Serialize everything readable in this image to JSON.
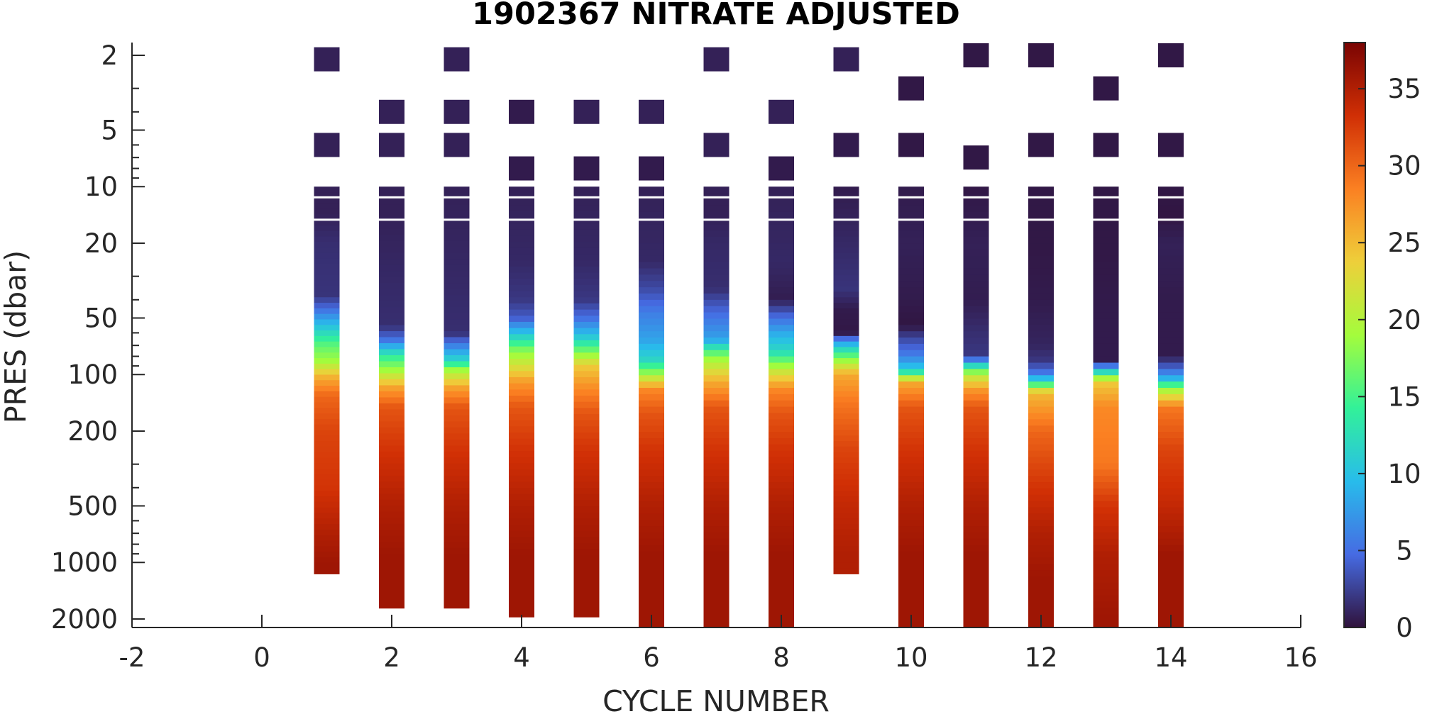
{
  "chart_data": {
    "type": "heatmap",
    "title": "1902367  NITRATE ADJUSTED",
    "xlabel": "CYCLE NUMBER",
    "ylabel": "PRES (dbar)",
    "xlim": [
      -2,
      16
    ],
    "x_ticks": [
      "-2",
      "0",
      "2",
      "4",
      "6",
      "8",
      "10",
      "12",
      "14",
      "16"
    ],
    "y_scale": "log",
    "y_reversed": true,
    "ylim": [
      1.7,
      2200
    ],
    "y_ticks": [
      "2",
      "5",
      "10",
      "20",
      "50",
      "100",
      "200",
      "500",
      "1000",
      "2000"
    ],
    "colorbar": {
      "colormap": "turbo",
      "range": [
        0,
        38
      ],
      "ticks": [
        "0",
        "5",
        "10",
        "15",
        "20",
        "25",
        "30",
        "35"
      ]
    },
    "profiles": [
      {
        "cycle": 1,
        "max_pres": 1150,
        "profile": [
          [
            2.1,
            0.8
          ],
          [
            6,
            0.8
          ],
          [
            10,
            0.8
          ],
          [
            14,
            0.8
          ],
          [
            20,
            1.5
          ],
          [
            38,
            1.8
          ],
          [
            45,
            5
          ],
          [
            55,
            10
          ],
          [
            70,
            16
          ],
          [
            85,
            19
          ],
          [
            105,
            26
          ],
          [
            130,
            30
          ],
          [
            200,
            32
          ],
          [
            400,
            33
          ],
          [
            700,
            35
          ],
          [
            1000,
            36
          ]
        ]
      },
      {
        "cycle": 2,
        "max_pres": 1750,
        "profile": [
          [
            4,
            0.8
          ],
          [
            6,
            0.8
          ],
          [
            10,
            0.8
          ],
          [
            14,
            0.8
          ],
          [
            30,
            1.2
          ],
          [
            55,
            1.5
          ],
          [
            65,
            5
          ],
          [
            80,
            14
          ],
          [
            95,
            19
          ],
          [
            120,
            27
          ],
          [
            150,
            31
          ],
          [
            250,
            33
          ],
          [
            500,
            35
          ],
          [
            900,
            36
          ],
          [
            1600,
            36
          ]
        ]
      },
      {
        "cycle": 3,
        "max_pres": 1750,
        "profile": [
          [
            2.1,
            0.8
          ],
          [
            4,
            0.8
          ],
          [
            6,
            0.8
          ],
          [
            10,
            0.8
          ],
          [
            30,
            1.2
          ],
          [
            60,
            1.5
          ],
          [
            70,
            6
          ],
          [
            85,
            12
          ],
          [
            95,
            19
          ],
          [
            120,
            27
          ],
          [
            150,
            31
          ],
          [
            250,
            33
          ],
          [
            500,
            35
          ],
          [
            900,
            36
          ],
          [
            1600,
            36
          ]
        ]
      },
      {
        "cycle": 4,
        "max_pres": 1950,
        "profile": [
          [
            4,
            0.5
          ],
          [
            8,
            0.5
          ],
          [
            10,
            0.8
          ],
          [
            25,
            1.2
          ],
          [
            40,
            2
          ],
          [
            50,
            4
          ],
          [
            62,
            11
          ],
          [
            75,
            18
          ],
          [
            90,
            22
          ],
          [
            110,
            27
          ],
          [
            150,
            31
          ],
          [
            250,
            33
          ],
          [
            500,
            35
          ],
          [
            900,
            36
          ],
          [
            1800,
            36
          ]
        ]
      },
      {
        "cycle": 5,
        "max_pres": 1950,
        "profile": [
          [
            4,
            0.8
          ],
          [
            8,
            0.5
          ],
          [
            10,
            0.8
          ],
          [
            25,
            1.2
          ],
          [
            40,
            2
          ],
          [
            50,
            5
          ],
          [
            62,
            10
          ],
          [
            75,
            17
          ],
          [
            90,
            24
          ],
          [
            120,
            28
          ],
          [
            160,
            31
          ],
          [
            250,
            33
          ],
          [
            500,
            35
          ],
          [
            900,
            36
          ],
          [
            1800,
            36
          ]
        ]
      },
      {
        "cycle": 6,
        "max_pres": 2200,
        "profile": [
          [
            4,
            0.8
          ],
          [
            8,
            0.5
          ],
          [
            10,
            0.8
          ],
          [
            25,
            1.2
          ],
          [
            35,
            3
          ],
          [
            48,
            6
          ],
          [
            65,
            8
          ],
          [
            85,
            12
          ],
          [
            100,
            19
          ],
          [
            120,
            28
          ],
          [
            160,
            31
          ],
          [
            250,
            33
          ],
          [
            500,
            35
          ],
          [
            900,
            36
          ],
          [
            2000,
            36
          ]
        ]
      },
      {
        "cycle": 7,
        "max_pres": 2200,
        "profile": [
          [
            2.1,
            0.8
          ],
          [
            6,
            0.8
          ],
          [
            10,
            0.8
          ],
          [
            14,
            0.8
          ],
          [
            20,
            1.2
          ],
          [
            35,
            1.5
          ],
          [
            48,
            5
          ],
          [
            65,
            8
          ],
          [
            80,
            18
          ],
          [
            110,
            26
          ],
          [
            150,
            31
          ],
          [
            250,
            33
          ],
          [
            500,
            35
          ],
          [
            900,
            36
          ],
          [
            2000,
            36
          ]
        ]
      },
      {
        "cycle": 8,
        "max_pres": 2200,
        "profile": [
          [
            4,
            0.8
          ],
          [
            8,
            0.5
          ],
          [
            10,
            0.8
          ],
          [
            25,
            1.2
          ],
          [
            40,
            0.6
          ],
          [
            50,
            5
          ],
          [
            62,
            9
          ],
          [
            75,
            12
          ],
          [
            95,
            21
          ],
          [
            120,
            28
          ],
          [
            160,
            31
          ],
          [
            250,
            33
          ],
          [
            500,
            35
          ],
          [
            900,
            36
          ],
          [
            2000,
            36
          ]
        ]
      },
      {
        "cycle": 9,
        "max_pres": 1150,
        "profile": [
          [
            2.1,
            0.8
          ],
          [
            6,
            0.5
          ],
          [
            10,
            0.5
          ],
          [
            20,
            1.2
          ],
          [
            35,
            1.8
          ],
          [
            45,
            0.5
          ],
          [
            60,
            0.3
          ],
          [
            70,
            10
          ],
          [
            85,
            19
          ],
          [
            100,
            26
          ],
          [
            140,
            29
          ],
          [
            250,
            32
          ],
          [
            500,
            34
          ],
          [
            900,
            35
          ]
        ]
      },
      {
        "cycle": 10,
        "max_pres": 2200,
        "profile": [
          [
            3,
            0.3
          ],
          [
            6,
            0.3
          ],
          [
            10,
            0.5
          ],
          [
            20,
            0.8
          ],
          [
            40,
            0.5
          ],
          [
            55,
            0.2
          ],
          [
            65,
            3
          ],
          [
            80,
            6
          ],
          [
            95,
            11
          ],
          [
            110,
            26
          ],
          [
            150,
            31
          ],
          [
            250,
            33
          ],
          [
            500,
            35
          ],
          [
            900,
            36
          ],
          [
            2000,
            36
          ]
        ]
      },
      {
        "cycle": 11,
        "max_pres": 2200,
        "profile": [
          [
            2,
            0.3
          ],
          [
            7,
            0.3
          ],
          [
            10,
            0.3
          ],
          [
            20,
            0.8
          ],
          [
            40,
            0.6
          ],
          [
            60,
            1.5
          ],
          [
            80,
            2
          ],
          [
            92,
            14
          ],
          [
            100,
            20
          ],
          [
            120,
            27
          ],
          [
            150,
            31
          ],
          [
            250,
            33
          ],
          [
            500,
            35
          ],
          [
            900,
            36
          ],
          [
            2000,
            36
          ]
        ]
      },
      {
        "cycle": 12,
        "max_pres": 2200,
        "profile": [
          [
            2,
            0.3
          ],
          [
            6,
            0.3
          ],
          [
            10,
            0.3
          ],
          [
            20,
            0.3
          ],
          [
            40,
            0.5
          ],
          [
            70,
            1
          ],
          [
            85,
            2
          ],
          [
            100,
            6
          ],
          [
            110,
            13
          ],
          [
            125,
            25
          ],
          [
            200,
            30
          ],
          [
            400,
            33
          ],
          [
            700,
            35
          ],
          [
            1200,
            36
          ],
          [
            2000,
            36
          ]
        ]
      },
      {
        "cycle": 13,
        "max_pres": 2200,
        "profile": [
          [
            3,
            0.3
          ],
          [
            6,
            0.3
          ],
          [
            10,
            0.3
          ],
          [
            20,
            0.3
          ],
          [
            50,
            0.5
          ],
          [
            85,
            0.5
          ],
          [
            98,
            13
          ],
          [
            110,
            24
          ],
          [
            150,
            28
          ],
          [
            300,
            29
          ],
          [
            500,
            33
          ],
          [
            900,
            35
          ],
          [
            2000,
            36
          ]
        ]
      },
      {
        "cycle": 14,
        "max_pres": 2200,
        "profile": [
          [
            2,
            0.3
          ],
          [
            6,
            0.3
          ],
          [
            10,
            0.3
          ],
          [
            14,
            0.2
          ],
          [
            20,
            0.8
          ],
          [
            40,
            0.5
          ],
          [
            80,
            0.5
          ],
          [
            95,
            5
          ],
          [
            105,
            9
          ],
          [
            120,
            19
          ],
          [
            150,
            29
          ],
          [
            250,
            32
          ],
          [
            500,
            34
          ],
          [
            900,
            36
          ],
          [
            2000,
            36
          ]
        ]
      }
    ]
  }
}
